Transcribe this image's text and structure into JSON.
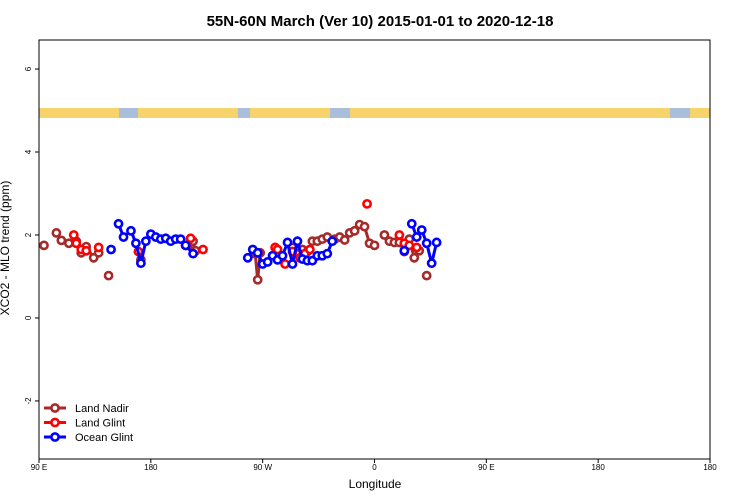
{
  "chart_data": {
    "type": "line",
    "title": "55N-60N March (Ver 10)   2015-01-01 to 2020-12-18",
    "xlabel": "Longitude",
    "ylabel": "XCO2 - MLO trend (ppm)",
    "xlim": [
      -90,
      180
    ],
    "ylim": [
      -3.4,
      6.7
    ],
    "x_ticks": [
      {
        "value": -90,
        "label": "90 E"
      },
      {
        "value": -45,
        "label": "180"
      },
      {
        "value": 0,
        "label": "90 W"
      },
      {
        "value": 45,
        "label": "0"
      },
      {
        "value": 90,
        "label": "90 E"
      },
      {
        "value": 135,
        "label": "180"
      },
      {
        "value": 180,
        "label": "180"
      }
    ],
    "y_ticks": [
      -2,
      0,
      2,
      4,
      6
    ],
    "grid": false,
    "legend_position": "bottom-left",
    "land_strip_colors": {
      "land": "#f6d36b",
      "ocean": "#a9bedb"
    },
    "series": [
      {
        "name": "Land Nadir",
        "color": "#a52a2a",
        "segments": [
          [
            [
              -88,
              1.75
            ]
          ],
          [
            [
              -83,
              2.05
            ],
            [
              -81,
              1.87
            ],
            [
              -78,
              1.8
            ],
            [
              -75,
              1.85
            ],
            [
              -73,
              1.57
            ],
            [
              -71,
              1.72
            ],
            [
              -68,
              1.45
            ],
            [
              -66,
              1.57
            ]
          ],
          [
            [
              -62,
              1.02
            ]
          ],
          [
            [
              -49,
              1.4
            ]
          ],
          [
            [
              -30,
              1.75
            ],
            [
              -28,
              1.85
            ],
            [
              -27,
              1.62
            ]
          ],
          [
            [
              -3,
              1.55
            ],
            [
              -2,
              0.92
            ],
            [
              -1,
              1.57
            ]
          ],
          [
            [
              12,
              1.7
            ],
            [
              14,
              1.55
            ],
            [
              16,
              1.65
            ],
            [
              18,
              1.6
            ],
            [
              20,
              1.85
            ],
            [
              22,
              1.85
            ],
            [
              24,
              1.9
            ],
            [
              26,
              1.95
            ],
            [
              29,
              1.9
            ],
            [
              31,
              1.95
            ],
            [
              33,
              1.88
            ],
            [
              35,
              2.05
            ],
            [
              37,
              2.1
            ],
            [
              39,
              2.25
            ],
            [
              41,
              2.2
            ],
            [
              43,
              1.8
            ],
            [
              45,
              1.75
            ]
          ],
          [
            [
              49,
              2.0
            ],
            [
              51,
              1.85
            ],
            [
              53,
              1.82
            ],
            [
              55,
              1.82
            ],
            [
              57,
              1.6
            ],
            [
              59,
              1.9
            ],
            [
              61,
              1.45
            ],
            [
              63,
              1.62
            ]
          ],
          [
            [
              66,
              1.02
            ]
          ]
        ]
      },
      {
        "name": "Land Glint",
        "color": "#ff0000",
        "segments": [
          [
            [
              -76,
              2.0
            ],
            [
              -75,
              1.8
            ],
            [
              -73,
              1.65
            ],
            [
              -71,
              1.62
            ]
          ],
          [
            [
              -66,
              1.7
            ]
          ],
          [
            [
              -50,
              1.6
            ]
          ],
          [
            [
              -31,
              1.75
            ],
            [
              -29,
              1.92
            ]
          ],
          [
            [
              -24,
              1.65
            ]
          ],
          [
            [
              5,
              1.7
            ],
            [
              6,
              1.65
            ]
          ],
          [
            [
              9,
              1.3
            ]
          ],
          [
            [
              12,
              1.6
            ]
          ],
          [
            [
              15,
              1.45
            ],
            [
              17,
              1.55
            ],
            [
              19,
              1.65
            ]
          ],
          [
            [
              42,
              2.75
            ]
          ],
          [
            [
              55,
              2.0
            ],
            [
              57,
              1.8
            ],
            [
              59,
              1.75
            ]
          ],
          [
            [
              62,
              1.7
            ]
          ]
        ]
      },
      {
        "name": "Ocean Glint",
        "color": "#0000ff",
        "segments": [
          [
            [
              -61,
              1.65
            ]
          ],
          [
            [
              -58,
              2.27
            ],
            [
              -56,
              1.95
            ],
            [
              -53,
              2.1
            ],
            [
              -51,
              1.8
            ],
            [
              -49,
              1.32
            ],
            [
              -47,
              1.85
            ],
            [
              -45,
              2.02
            ],
            [
              -43,
              1.95
            ],
            [
              -41,
              1.9
            ],
            [
              -39,
              1.92
            ],
            [
              -37,
              1.85
            ],
            [
              -35,
              1.9
            ],
            [
              -33,
              1.9
            ],
            [
              -31,
              1.75
            ],
            [
              -28,
              1.55
            ]
          ],
          [
            [
              -6,
              1.45
            ],
            [
              -4,
              1.65
            ],
            [
              -2,
              1.57
            ],
            [
              0,
              1.3
            ],
            [
              2,
              1.35
            ],
            [
              4,
              1.5
            ],
            [
              6,
              1.4
            ],
            [
              8,
              1.5
            ],
            [
              10,
              1.82
            ],
            [
              12,
              1.3
            ],
            [
              14,
              1.85
            ],
            [
              16,
              1.42
            ],
            [
              18,
              1.38
            ],
            [
              20,
              1.38
            ],
            [
              22,
              1.5
            ],
            [
              24,
              1.5
            ],
            [
              26,
              1.55
            ],
            [
              28,
              1.85
            ]
          ],
          [
            [
              57,
              1.62
            ]
          ],
          [
            [
              60,
              2.27
            ],
            [
              62,
              1.95
            ],
            [
              64,
              2.12
            ],
            [
              66,
              1.8
            ],
            [
              68,
              1.32
            ],
            [
              70,
              1.82
            ]
          ]
        ]
      }
    ]
  }
}
